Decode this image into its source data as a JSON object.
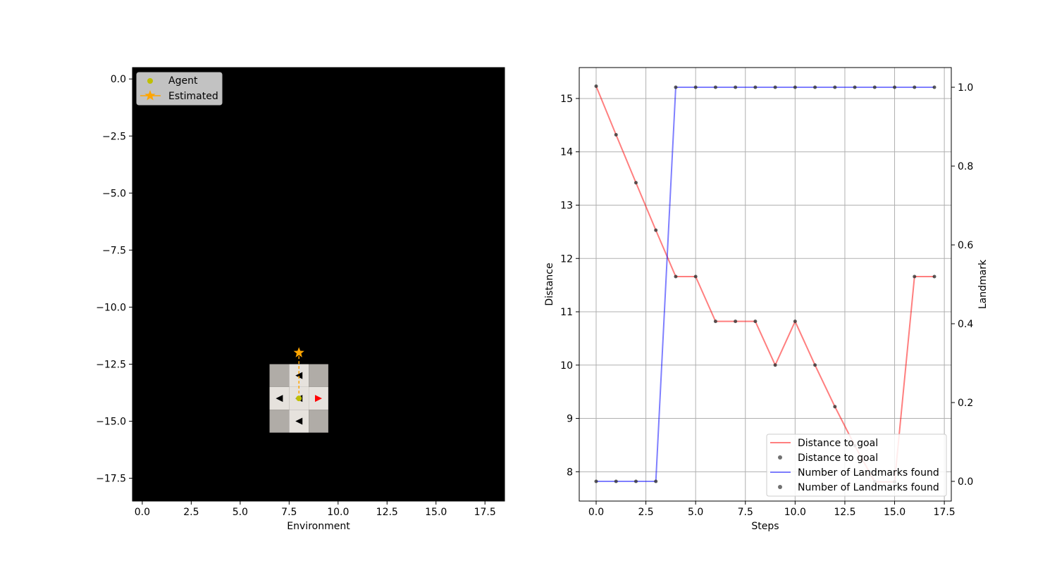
{
  "chart_data": [
    {
      "type": "scatter",
      "xlabel": "Environment",
      "xlim": [
        -0.5,
        18.5
      ],
      "ylim": [
        0.5,
        -18.5
      ],
      "xticks": [
        "0.0",
        "2.5",
        "5.0",
        "7.5",
        "10.0",
        "12.5",
        "15.0",
        "17.5"
      ],
      "yticks": [
        "0.0",
        "−2.5",
        "−5.0",
        "−7.5",
        "−10.0",
        "−12.5",
        "−15.0",
        "−17.5"
      ],
      "background_color": "#000000",
      "grid_cells": [
        {
          "x": 7,
          "y": -13,
          "color": "#b0aca7"
        },
        {
          "x": 8,
          "y": -13,
          "color": "#e6e2dd"
        },
        {
          "x": 9,
          "y": -13,
          "color": "#b0aca7"
        },
        {
          "x": 7,
          "y": -14,
          "color": "#e6e2dd"
        },
        {
          "x": 8,
          "y": -14,
          "color": "#e6e2dd"
        },
        {
          "x": 9,
          "y": -14,
          "color": "#e6e2dd"
        },
        {
          "x": 7,
          "y": -15,
          "color": "#b0aca7"
        },
        {
          "x": 8,
          "y": -15,
          "color": "#e6e2dd"
        },
        {
          "x": 9,
          "y": -15,
          "color": "#b0aca7"
        }
      ],
      "arrows": [
        {
          "x": 8,
          "y": -13,
          "direction": "left",
          "color": "#000000"
        },
        {
          "x": 7,
          "y": -14,
          "direction": "left",
          "color": "#000000"
        },
        {
          "x": 8,
          "y": -14,
          "direction": "left",
          "color": "#000000"
        },
        {
          "x": 9,
          "y": -14,
          "direction": "right",
          "color": "#ff0000"
        },
        {
          "x": 8,
          "y": -15,
          "direction": "left",
          "color": "#000000"
        }
      ],
      "agent": {
        "x": 8,
        "y": -14,
        "color": "#bfbf00"
      },
      "estimated": {
        "x": 8,
        "y": -12,
        "color": "#ffa500"
      },
      "legend": [
        "Agent",
        "Estimated"
      ],
      "legend_position": "upper-left"
    },
    {
      "type": "line",
      "xlabel": "Steps",
      "ylabel": "Distance",
      "ylabel_right": "Landmark",
      "xlim": [
        -0.85,
        17.85
      ],
      "ylim": [
        7.45,
        15.58
      ],
      "ylim_right": [
        -0.05,
        1.05
      ],
      "xticks": [
        "0.0",
        "2.5",
        "5.0",
        "7.5",
        "10.0",
        "12.5",
        "15.0",
        "17.5"
      ],
      "yticks": [
        "8",
        "9",
        "10",
        "11",
        "12",
        "13",
        "14",
        "15"
      ],
      "yticks_right": [
        "0.0",
        "0.2",
        "0.4",
        "0.6",
        "0.8",
        "1.0"
      ],
      "grid": true,
      "x": [
        0,
        1,
        2,
        3,
        4,
        5,
        6,
        7,
        8,
        9,
        10,
        11,
        12,
        13,
        14,
        15,
        16,
        17
      ],
      "series": [
        {
          "name": "Distance to goal",
          "axis": "left",
          "line_color": "#ff0000",
          "marker_color": "#333333",
          "values": [
            15.23,
            14.32,
            13.42,
            12.53,
            11.66,
            11.66,
            10.82,
            10.82,
            10.82,
            10.0,
            10.82,
            10.0,
            9.22,
            8.49,
            7.81,
            7.81,
            11.66,
            11.66
          ]
        },
        {
          "name": "Number of Landmarks found",
          "axis": "right",
          "line_color": "#0000ff",
          "marker_color": "#333333",
          "values": [
            0,
            0,
            0,
            0,
            1,
            1,
            1,
            1,
            1,
            1,
            1,
            1,
            1,
            1,
            1,
            1,
            1,
            1
          ]
        }
      ],
      "legend": [
        "Distance to goal",
        "Distance to goal",
        "Number of Landmarks found",
        "Number of Landmarks found"
      ],
      "legend_position": "lower-right"
    }
  ]
}
